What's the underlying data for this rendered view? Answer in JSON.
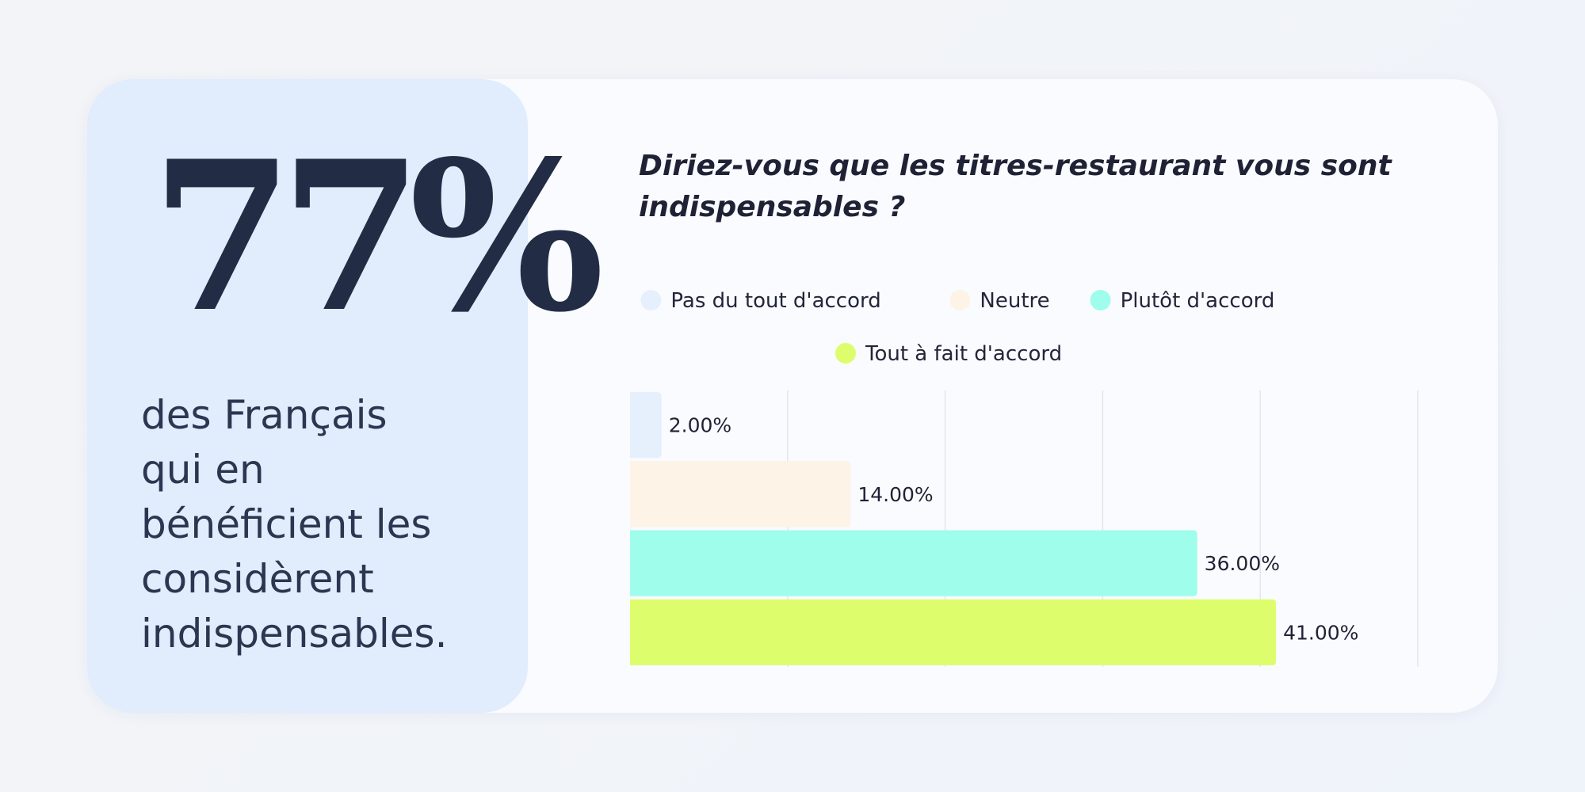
{
  "stat": {
    "number": "77%",
    "caption_lines": [
      "des Français",
      "qui en",
      "bénéficient les",
      "considèrent",
      "indispensables."
    ]
  },
  "chart_data": {
    "type": "bar",
    "orientation": "horizontal",
    "title": "Diriez-vous que les titres-restaurant vous sont indispensables ?",
    "categories": [
      "Pas du tout d'accord",
      "Neutre",
      "Plutôt d'accord",
      "Tout à fait d'accord"
    ],
    "values": [
      2,
      14,
      36,
      41
    ],
    "value_labels": [
      "2.00%",
      "14.00%",
      "36.00%",
      "41.00%"
    ],
    "colors": [
      "#e6f0fd",
      "#fdf3e7",
      "#9ffdec",
      "#defd6c"
    ],
    "xlim": [
      0,
      50
    ],
    "grid": true,
    "legend_position": "top-center"
  }
}
